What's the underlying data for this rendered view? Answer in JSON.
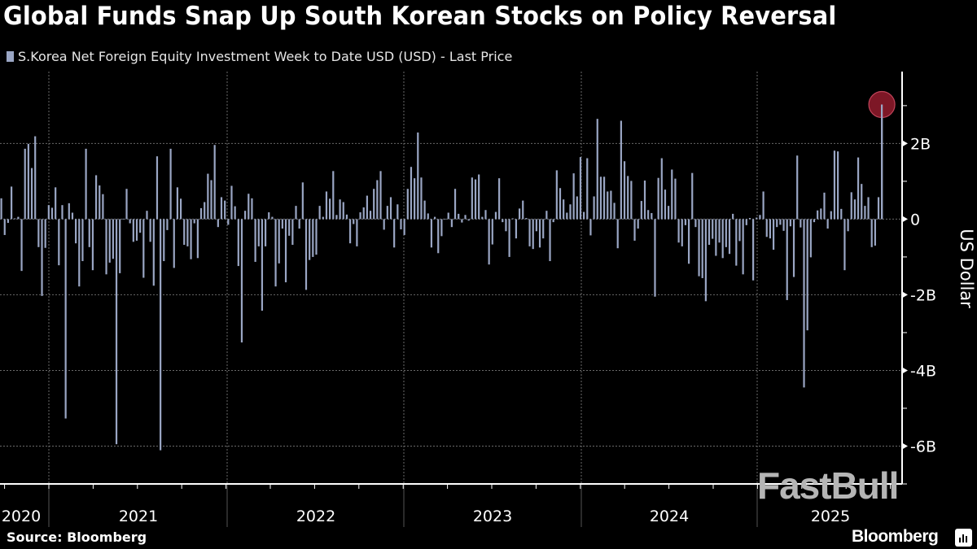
{
  "header": {
    "title": "Global Funds Snap Up South Korean Stocks on Policy Reversal",
    "legend_label": "S.Korea Net Foreign Equity Investment Week to Date USD (USD) - Last Price"
  },
  "footer": {
    "source": "Source: Bloomberg",
    "brand": "Bloomberg",
    "watermark": "FastBull"
  },
  "colors": {
    "background": "#000000",
    "bar": "#9aa6c4",
    "highlight_circle": "#8b1a2a",
    "grid": "#6a6a6a"
  },
  "chart_data": {
    "type": "bar",
    "title": "Global Funds Snap Up South Korean Stocks on Policy Reversal",
    "series": [
      {
        "name": "S.Korea Net Foreign Equity Investment Week to Date USD (USD) - Last Price",
        "unit": "USD billions",
        "values": [
          0.55,
          -0.42,
          -0.1,
          0.86,
          0.02,
          0.06,
          -1.37,
          1.86,
          1.99,
          1.35,
          2.19,
          -0.74,
          -2.03,
          -0.76,
          0.37,
          0.3,
          0.84,
          -1.22,
          0.37,
          -5.27,
          0.42,
          0.17,
          -0.64,
          -1.78,
          -1.11,
          1.86,
          -0.74,
          -1.35,
          1.16,
          0.89,
          0.66,
          -1.46,
          -1.15,
          -1.05,
          -5.95,
          -1.43,
          0.01,
          0.8,
          -0.11,
          -0.6,
          -0.57,
          -0.36,
          -1.55,
          0.22,
          -0.6,
          -1.76,
          1.66,
          -6.11,
          -1.11,
          -0.29,
          1.86,
          -1.29,
          0.84,
          0.54,
          -0.68,
          -0.72,
          -1.06,
          -0.11,
          -1.03,
          0.29,
          0.45,
          1.2,
          1.03,
          1.96,
          -0.21,
          0.58,
          0.49,
          -0.15,
          0.88,
          0.34,
          -1.24,
          -3.26,
          0.22,
          0.67,
          0.55,
          -1.13,
          -0.72,
          -2.42,
          -0.72,
          0.18,
          0.06,
          -1.78,
          -1.17,
          -0.25,
          -1.67,
          -0.44,
          -0.68,
          0.35,
          -0.25,
          0.97,
          -1.87,
          -1.08,
          -1.0,
          -0.94,
          0.35,
          0.06,
          0.73,
          0.54,
          1.27,
          0.11,
          0.52,
          0.45,
          0.12,
          -0.64,
          -0.13,
          -0.72,
          0.18,
          0.31,
          0.62,
          0.22,
          0.8,
          1.03,
          1.27,
          -0.28,
          0.35,
          0.58,
          -0.75,
          0.39,
          -0.27,
          -0.42,
          0.8,
          1.38,
          1.08,
          2.29,
          1.1,
          0.49,
          0.15,
          -0.75,
          0.06,
          -0.9,
          -0.45,
          0.01,
          0.17,
          -0.21,
          0.8,
          0.14,
          -0.09,
          0.11,
          -0.04,
          1.1,
          1.05,
          1.18,
          0.06,
          0.24,
          -1.2,
          -0.67,
          0.19,
          1.08,
          -0.08,
          -0.32,
          -1.0,
          0.02,
          -0.51,
          0.28,
          0.49,
          0.03,
          -0.72,
          -0.79,
          -0.32,
          -0.75,
          -0.51,
          0.22,
          -1.11,
          -0.08,
          1.29,
          0.82,
          0.52,
          0.17,
          0.39,
          1.21,
          0.6,
          1.64,
          0.19,
          1.61,
          -0.43,
          0.6,
          2.65,
          1.12,
          1.12,
          0.73,
          0.75,
          0.43,
          -0.77,
          2.6,
          1.53,
          1.14,
          1.01,
          -0.57,
          -0.25,
          0.48,
          1.02,
          0.24,
          0.16,
          -2.05,
          1.09,
          1.61,
          0.78,
          0.35,
          1.31,
          1.07,
          -0.62,
          -0.72,
          -0.16,
          -1.18,
          1.22,
          -0.21,
          -1.51,
          -1.56,
          -2.17,
          -0.68,
          -0.52,
          -0.97,
          -0.62,
          -1.03,
          -0.74,
          -0.92,
          0.14,
          -1.23,
          -0.58,
          -1.46,
          -0.16,
          0.03,
          -1.62,
          0.04,
          0.11,
          0.73,
          -0.47,
          -0.51,
          -0.81,
          -0.21,
          -0.15,
          -0.31,
          -2.14,
          -0.19,
          -1.53,
          1.68,
          -0.22,
          -4.45,
          -2.94,
          -1.01,
          -0.08,
          0.23,
          0.28,
          0.7,
          -0.25,
          0.21,
          1.81,
          1.79,
          0.27,
          -1.35,
          -0.32,
          0.71,
          0.52,
          1.63,
          0.93,
          0.35,
          0.58,
          -0.74,
          -0.7,
          0.58,
          3.03
        ]
      }
    ],
    "x_frequency": "weekly",
    "x_tick_labels": [
      "2020",
      "2021",
      "2022",
      "2023",
      "2024",
      "2025"
    ],
    "y_tick_labels": [
      "2B",
      "0",
      "-2B",
      "-4B",
      "-6B"
    ],
    "y_ticks": [
      2,
      0,
      -2,
      -4,
      -6
    ],
    "ylabel": "US Dollar",
    "ylim": [
      -7,
      3.9
    ],
    "y_axis_side": "right",
    "grid": true,
    "legend": "top-left",
    "highlight": "last value circled in red"
  }
}
